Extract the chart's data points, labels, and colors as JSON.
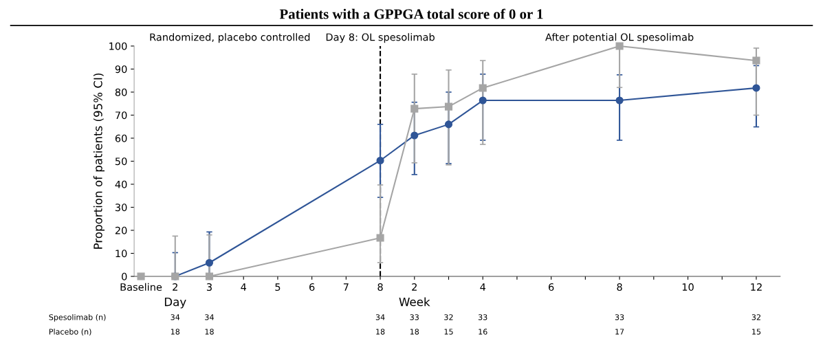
{
  "chart_data": {
    "type": "line",
    "title": "Patients with a GPPGA total score of 0 or 1",
    "ylabel": "Proportion of patients (95% CI)",
    "categories": [
      "Baseline",
      "2",
      "3",
      "4",
      "5",
      "6",
      "7",
      "8",
      "2",
      null,
      "4",
      null,
      "6",
      null,
      "8",
      null,
      "10",
      null,
      "12"
    ],
    "ylim": [
      0,
      100
    ],
    "yticks": [
      0,
      10,
      20,
      30,
      40,
      50,
      60,
      70,
      80,
      90,
      100
    ],
    "grid": false,
    "legend": false,
    "series": [
      {
        "color": "#2f5597",
        "marker": "circle",
        "values": [
          null,
          0,
          5.9,
          null,
          null,
          null,
          null,
          50.3,
          61.2,
          66,
          76.4,
          null,
          null,
          null,
          76.4,
          null,
          null,
          null,
          81.8
        ],
        "errors": [
          null,
          [
            0,
            10.3
          ],
          [
            1,
            19.3
          ],
          null,
          null,
          null,
          null,
          [
            34.3,
            66
          ],
          [
            44.2,
            75.6
          ],
          [
            49,
            80
          ],
          [
            59.1,
            87.8
          ],
          null,
          null,
          null,
          [
            59.1,
            87.5
          ],
          null,
          null,
          null,
          [
            64.9,
            91.5
          ]
        ]
      },
      {
        "color": "#a5a5a5",
        "marker": "square",
        "values": [
          0,
          0,
          0,
          null,
          null,
          null,
          null,
          16.7,
          72.8,
          73.7,
          81.8,
          null,
          null,
          null,
          100,
          null,
          null,
          null,
          93.7
        ],
        "errors": [
          null,
          [
            0,
            17.5
          ],
          [
            0,
            18
          ],
          null,
          null,
          null,
          null,
          [
            6,
            39.7
          ],
          [
            49.3,
            87.8
          ],
          [
            48.4,
            89.6
          ],
          [
            57.3,
            93.7
          ],
          null,
          null,
          null,
          [
            82,
            100
          ],
          null,
          null,
          null,
          [
            70,
            99.1
          ]
        ]
      }
    ],
    "ref_lines": [
      {
        "axis": "x",
        "value": "8",
        "color": "#000000",
        "line_style": "dashed"
      }
    ],
    "annotations": [
      "Randomized, placebo controlled",
      "Day 8: OL spesolimab",
      "After potential OL spesolimab",
      "Day",
      "Week",
      "Spesolimab (n)",
      "34",
      "34",
      "34",
      "33",
      "32",
      "33",
      "33",
      "32",
      "Placebo (n)",
      "18",
      "18",
      "18",
      "18",
      "15",
      "16",
      "17",
      "15"
    ]
  }
}
